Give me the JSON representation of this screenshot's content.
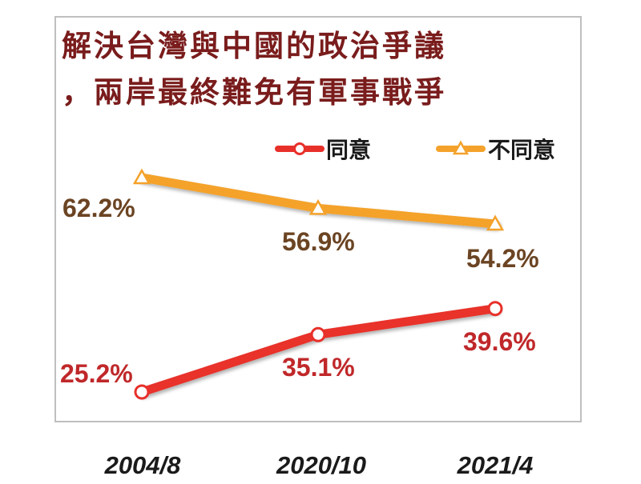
{
  "chart_data": {
    "type": "line",
    "title_lines": [
      "解決台灣與中國的政治爭議",
      "，兩岸最終難免有軍事戰爭"
    ],
    "categories": [
      "2004/8",
      "2020/10",
      "2021/4"
    ],
    "series": [
      {
        "name": "同意",
        "values": [
          25.2,
          35.1,
          39.6
        ],
        "labels": [
          "25.2%",
          "35.1%",
          "39.6%"
        ],
        "color": "#e8302a",
        "label_color": "#c0282a",
        "marker": "circle"
      },
      {
        "name": "不同意",
        "values": [
          62.2,
          56.9,
          54.2
        ],
        "labels": [
          "62.2%",
          "56.9%",
          "54.2%"
        ],
        "color": "#f4a22b",
        "label_color": "#6b4423",
        "marker": "triangle"
      }
    ],
    "legend_position": "top-right",
    "title_color": "#7a1c1c",
    "grid": false
  }
}
